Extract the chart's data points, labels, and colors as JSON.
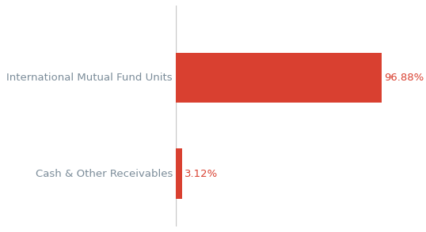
{
  "categories": [
    "Cash & Other Receivables",
    "International Mutual Fund Units"
  ],
  "values": [
    3.12,
    96.88
  ],
  "bar_color": "#d94030",
  "label_color": "#7b8c99",
  "value_color": "#d94030",
  "background_color": "#ffffff",
  "xlim": [
    0,
    115
  ],
  "bar_height": 0.52,
  "label_fontsize": 9.5,
  "value_fontsize": 9.5,
  "figsize": [
    5.38,
    2.94
  ],
  "dpi": 100,
  "ylim": [
    -0.55,
    1.75
  ]
}
